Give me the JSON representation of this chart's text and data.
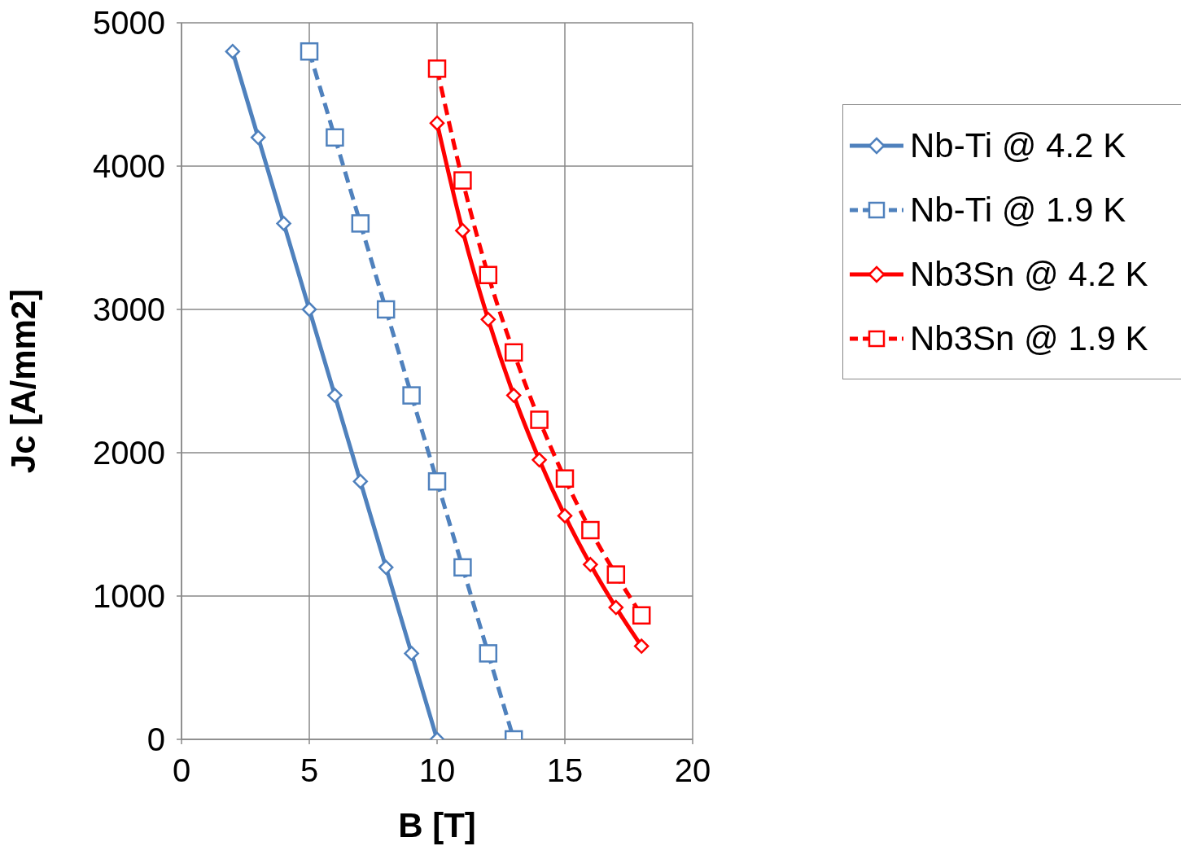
{
  "chart_data": {
    "type": "line",
    "xlabel": "B [T]",
    "ylabel": "Jc [A/mm2]",
    "xlim": [
      0,
      20
    ],
    "xticks": [
      0,
      5,
      10,
      15,
      20
    ],
    "ylim": [
      0,
      5000
    ],
    "yticks": [
      0,
      1000,
      2000,
      3000,
      4000,
      5000
    ],
    "grid": true,
    "legend": "right",
    "series": [
      {
        "name": "Nb-Ti @ 4.2 K",
        "color": "#4f81bd",
        "marker": "diamond",
        "line_style": "solid",
        "x": [
          2,
          3,
          4,
          5,
          6,
          7,
          8,
          9,
          10
        ],
        "values": [
          4800,
          4200,
          3600,
          3000,
          2400,
          1800,
          1200,
          600,
          0
        ]
      },
      {
        "name": "Nb-Ti @ 1.9 K",
        "color": "#4f81bd",
        "marker": "square",
        "line_style": "dashed",
        "x": [
          5,
          6,
          7,
          8,
          9,
          10,
          11,
          12,
          13
        ],
        "values": [
          4800,
          4200,
          3600,
          3000,
          2400,
          1800,
          1200,
          600,
          0
        ]
      },
      {
        "name": "Nb3Sn @ 4.2 K",
        "color": "#ff0000",
        "marker": "diamond",
        "line_style": "solid",
        "x": [
          10,
          11,
          12,
          13,
          14,
          15,
          16,
          17,
          18
        ],
        "values": [
          4300,
          3550,
          2930,
          2400,
          1950,
          1560,
          1220,
          920,
          650
        ]
      },
      {
        "name": "Nb3Sn @ 1.9 K",
        "color": "#ff0000",
        "marker": "square",
        "line_style": "dashed",
        "x": [
          10,
          11,
          12,
          13,
          14,
          15,
          16,
          17,
          18
        ],
        "values": [
          4680,
          3900,
          3240,
          2700,
          2230,
          1820,
          1460,
          1150,
          865
        ]
      }
    ]
  }
}
